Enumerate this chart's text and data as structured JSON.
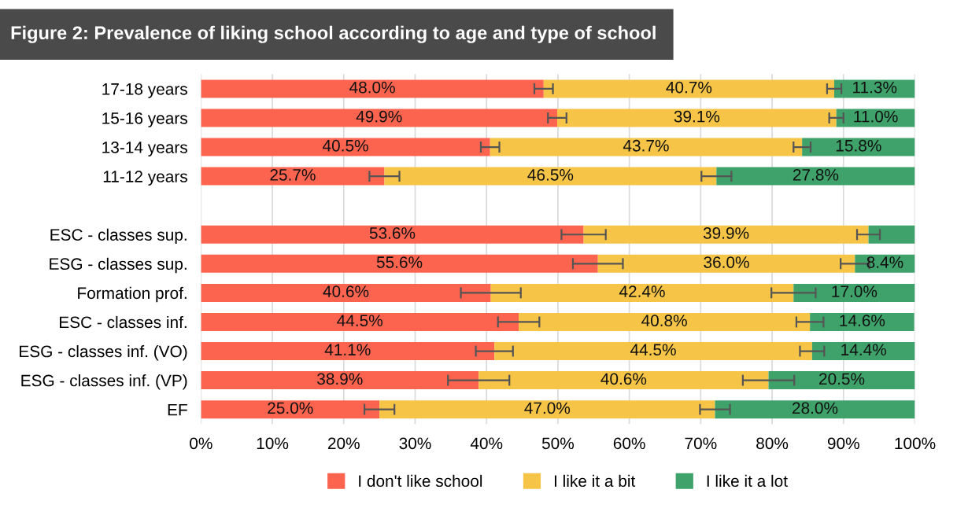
{
  "chart_data": {
    "type": "bar",
    "orientation": "horizontal",
    "stacked": true,
    "title": "Figure 2: Prevalence of liking school according to age and type of school",
    "categories": [
      "17-18 years",
      "15-16 years",
      "13-14 years",
      "11-12 years",
      null,
      "ESC - classes sup.",
      "ESG - classes sup.",
      "Formation prof.",
      "ESC - classes inf.",
      "ESG - classes inf. (VO)",
      "ESG - classes inf. (VP)",
      "EF"
    ],
    "series": [
      {
        "name": "I don't like school",
        "color": "#fd6450",
        "values": [
          48.0,
          49.9,
          40.5,
          25.7,
          null,
          53.6,
          55.6,
          40.6,
          44.5,
          41.1,
          38.9,
          25.0
        ],
        "value_labels": [
          "48.0%",
          "49.9%",
          "40.5%",
          "25.7%",
          null,
          "53.6%",
          "55.6%",
          "40.6%",
          "44.5%",
          "41.1%",
          "38.9%",
          "25.0%"
        ],
        "errors": [
          1.3,
          1.3,
          1.3,
          2.1,
          null,
          3.1,
          3.5,
          4.2,
          2.9,
          2.6,
          4.3,
          2.1
        ]
      },
      {
        "name": "I like it a bit",
        "color": "#f6c447",
        "values": [
          40.7,
          39.1,
          43.7,
          46.5,
          null,
          39.9,
          36.0,
          42.4,
          40.8,
          44.5,
          40.6,
          47.0
        ],
        "value_labels": [
          "40.7%",
          "39.1%",
          "43.7%",
          "46.5%",
          null,
          "39.9%",
          "36.0%",
          "42.4%",
          "40.8%",
          "44.5%",
          "40.6%",
          "47.0%"
        ],
        "errors": [
          1.0,
          1.0,
          1.2,
          2.1,
          null,
          1.6,
          2.0,
          3.1,
          1.9,
          1.7,
          3.6,
          2.1
        ]
      },
      {
        "name": "I like it a lot",
        "color": "#3fa26a",
        "values": [
          11.3,
          11.0,
          15.8,
          27.8,
          null,
          6.5,
          8.4,
          17.0,
          14.6,
          14.4,
          20.5,
          28.0
        ],
        "value_labels": [
          "11.3%",
          "11.0%",
          "15.8%",
          "27.8%",
          null,
          null,
          "8.4%",
          "17.0%",
          "14.6%",
          "14.4%",
          "20.5%",
          "28.0%"
        ]
      }
    ],
    "xlim": [
      0,
      100
    ],
    "xticks": [
      {
        "value": 0,
        "label": "0%"
      },
      {
        "value": 10,
        "label": "10%"
      },
      {
        "value": 20,
        "label": "20%"
      },
      {
        "value": 30,
        "label": "30%"
      },
      {
        "value": 40,
        "label": "40%"
      },
      {
        "value": 50,
        "label": "50%"
      },
      {
        "value": 60,
        "label": "60%"
      },
      {
        "value": 70,
        "label": "70%"
      },
      {
        "value": 80,
        "label": "80%"
      },
      {
        "value": 90,
        "label": "90%"
      },
      {
        "value": 100,
        "label": "100%"
      }
    ],
    "grid": "x",
    "legend": "bottom"
  }
}
